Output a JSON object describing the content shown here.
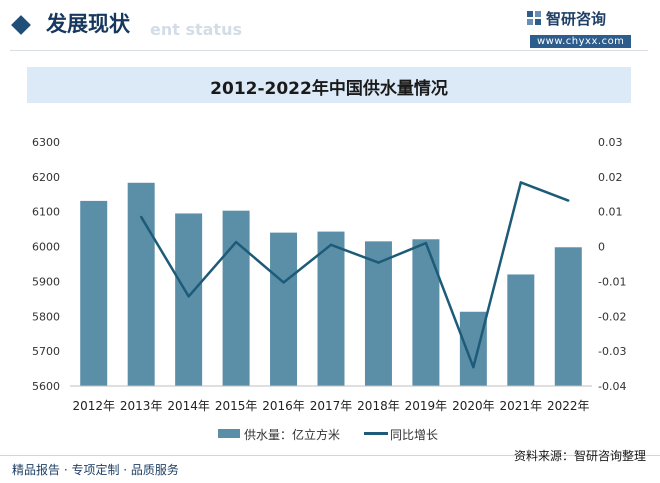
{
  "header": {
    "section_title": "发展现状",
    "section_subtitle": "ent status",
    "brand_name": "智研咨询",
    "brand_url": "www.chyxx.com"
  },
  "chart_data": {
    "type": "bar",
    "title": "2012-2022年中国供水量情况",
    "categories": [
      "2012年",
      "2013年",
      "2014年",
      "2015年",
      "2016年",
      "2017年",
      "2018年",
      "2019年",
      "2020年",
      "2021年",
      "2022年"
    ],
    "series": [
      {
        "name": "供水量：亿立方米",
        "type": "bar",
        "axis": "left",
        "values": [
          6131,
          6183,
          6095,
          6103,
          6040,
          6043,
          6015,
          6021,
          5813,
          5920,
          5998
        ]
      },
      {
        "name": "同比增长",
        "type": "line",
        "axis": "right",
        "values": [
          null,
          0.0085,
          -0.0143,
          0.0013,
          -0.0103,
          0.0005,
          -0.0046,
          0.001,
          -0.0346,
          0.0184,
          0.0132
        ]
      }
    ],
    "y_left": {
      "min": 5600,
      "max": 6300,
      "ticks": [
        "5600",
        "5700",
        "5800",
        "5900",
        "6000",
        "6100",
        "6200",
        "6300"
      ]
    },
    "y_right": {
      "min": -0.04,
      "max": 0.03,
      "ticks": [
        "-0.04",
        "-0.03",
        "-0.02",
        "-0.01",
        "0",
        "0.01",
        "0.02",
        "0.03"
      ]
    },
    "grid": false,
    "legend_position": "bottom",
    "colors": {
      "bar": "#5b8fa8",
      "line": "#1e5b78"
    }
  },
  "legend": {
    "bar_label": "供水量：亿立方米",
    "line_label": "同比增长"
  },
  "footer": {
    "left": "精品报告 · 专项定制 · 品质服务",
    "source": "资料来源：智研咨询整理"
  }
}
